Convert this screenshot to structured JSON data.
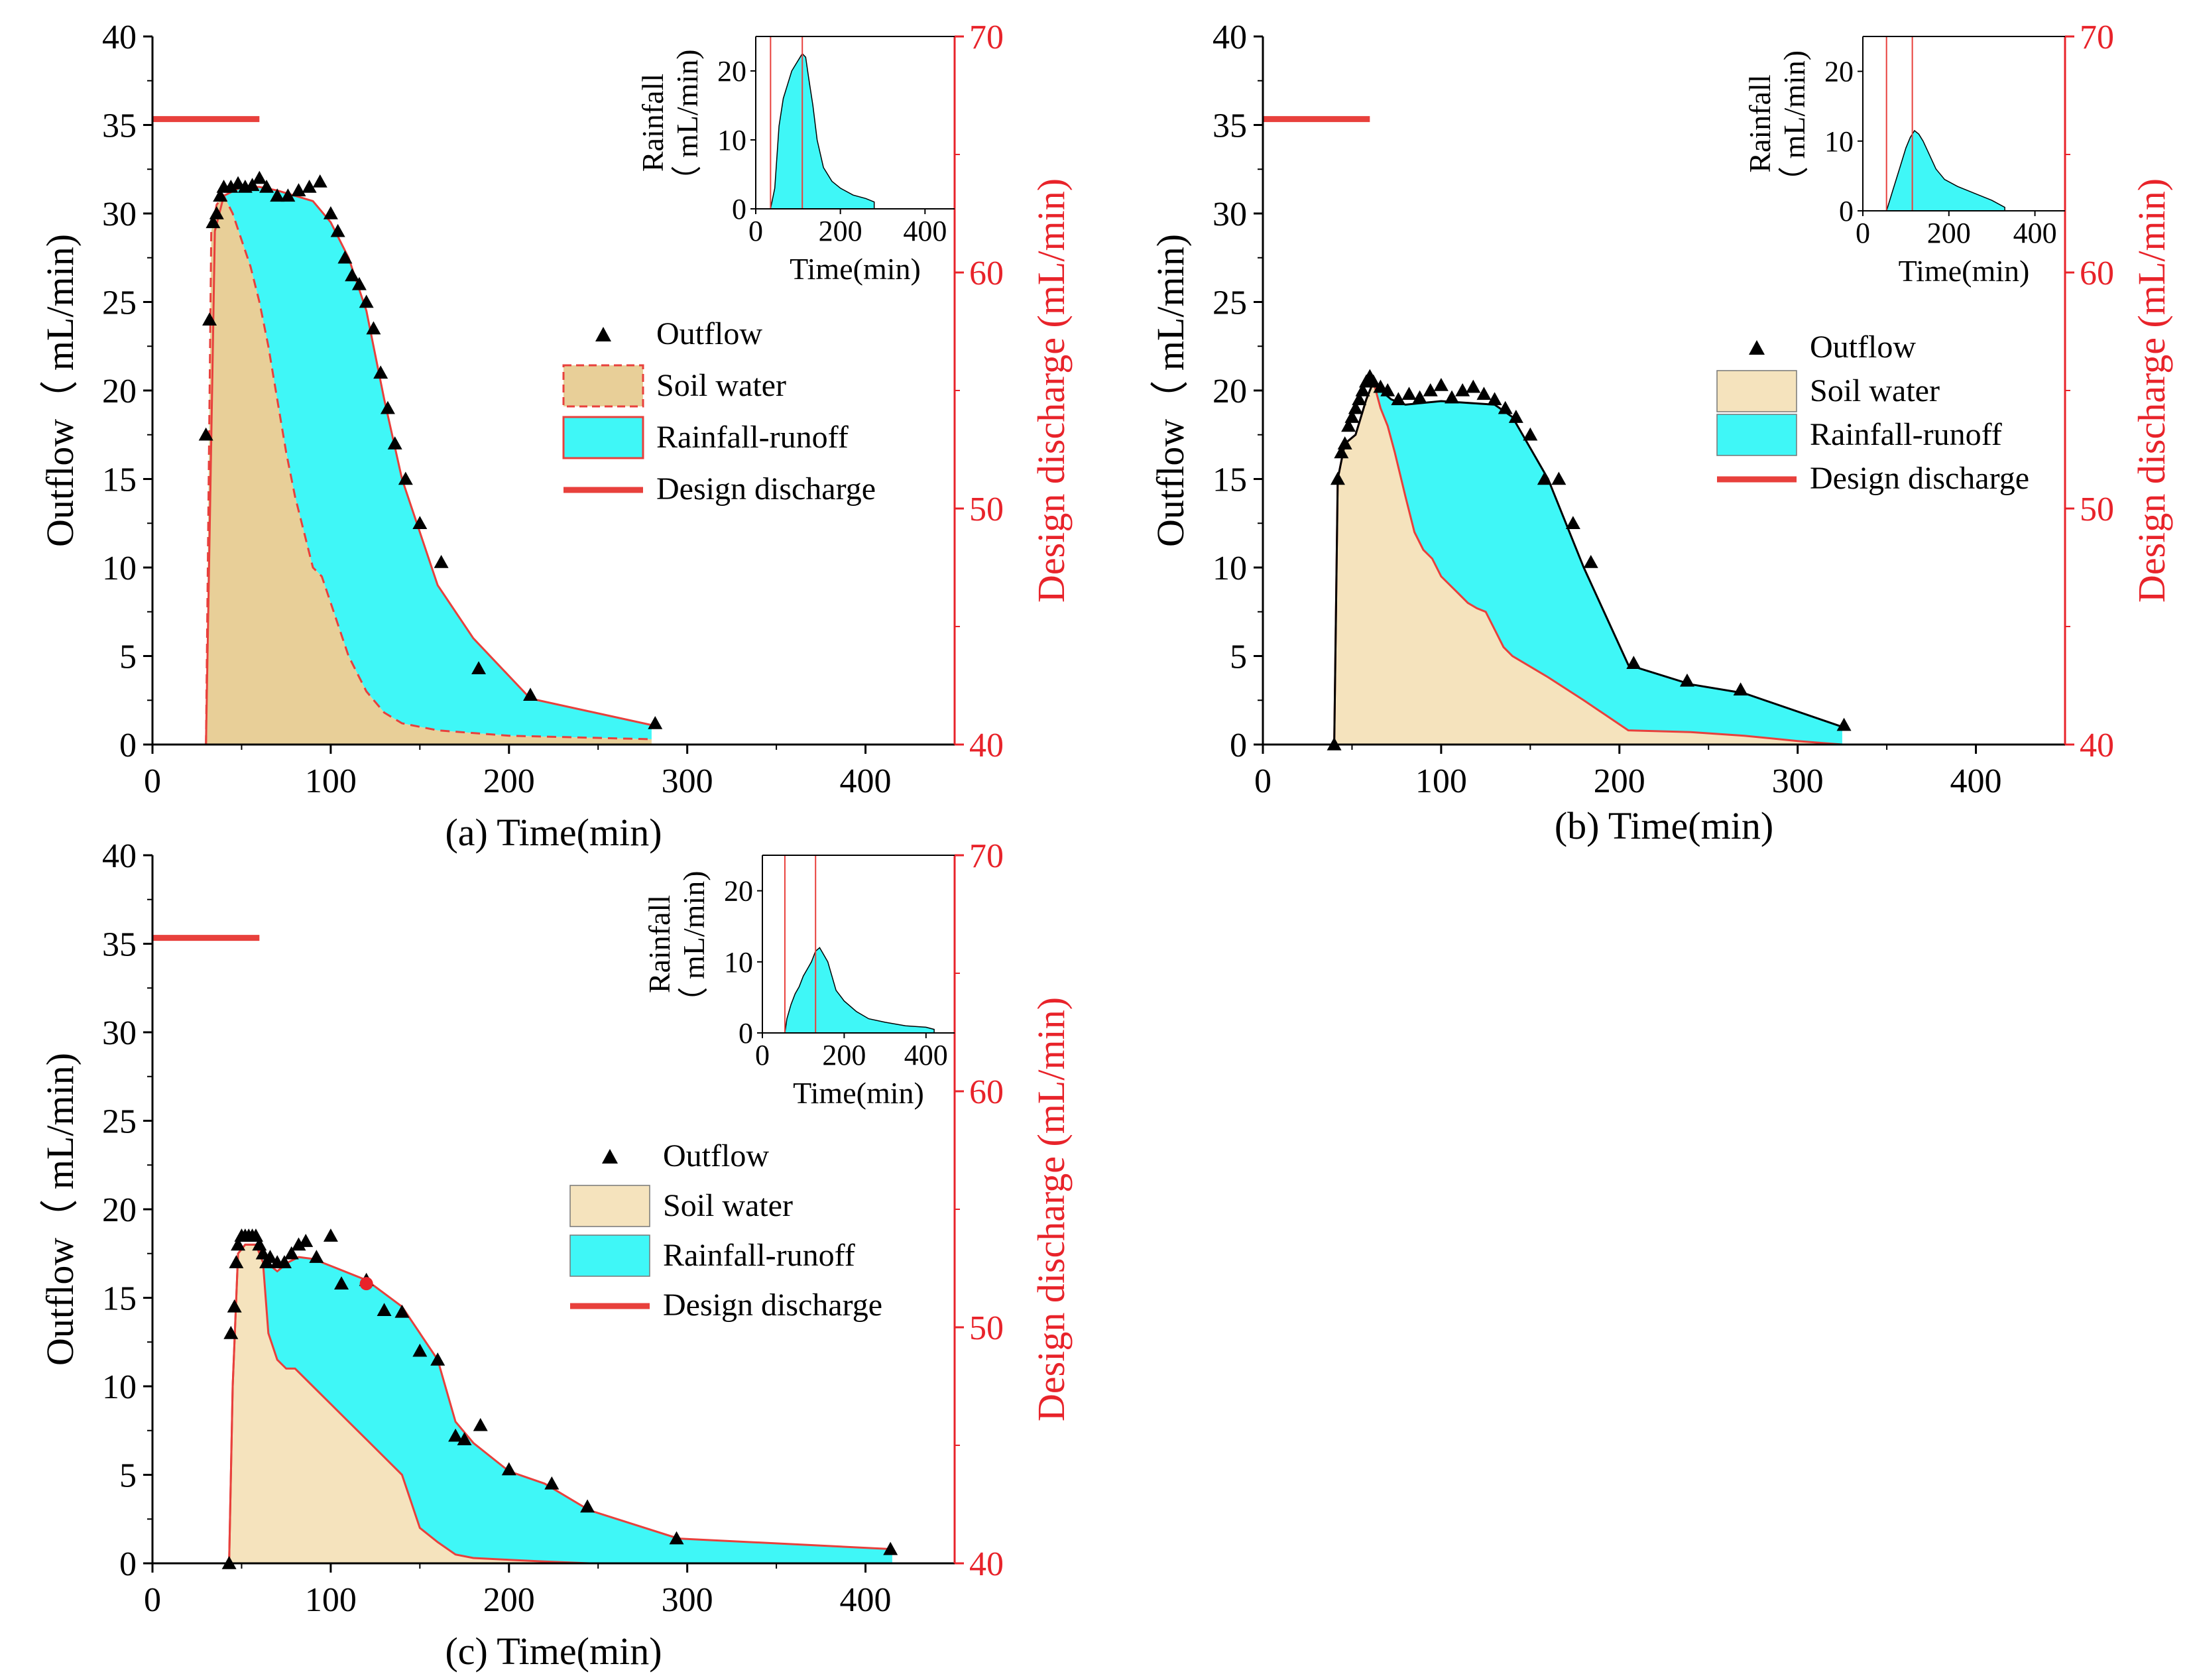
{
  "figure": {
    "panels": [
      {
        "id": "a",
        "caption": "(a)  Time(min)",
        "ylabel": "Outflow（ mL/min)",
        "y2label": "Design discharge (mL/min)",
        "x_ticks": [
          "0",
          "100",
          "200",
          "300",
          "400"
        ],
        "y_ticks": [
          "0",
          "5",
          "10",
          "15",
          "20",
          "25",
          "30",
          "35",
          "40"
        ],
        "y2_ticks": [
          "40",
          "50",
          "60",
          "70"
        ],
        "legend": {
          "outflow": "Outflow",
          "soil": "Soil water",
          "rain": "Rainfall-runoff",
          "design": "Design discharge"
        },
        "inset": {
          "ylabel_1": "Rainfall",
          "ylabel_2": "（ mL/min)",
          "xlabel": "Time(min)",
          "x_ticks": [
            "0",
            "200",
            "400"
          ],
          "y_ticks": [
            "0",
            "10",
            "20"
          ]
        }
      },
      {
        "id": "b",
        "caption": "(b)  Time(min)",
        "ylabel": "Outflow（ mL/min)",
        "y2label": "Design discharge (mL/min)",
        "x_ticks": [
          "0",
          "100",
          "200",
          "300",
          "400"
        ],
        "y_ticks": [
          "0",
          "5",
          "10",
          "15",
          "20",
          "25",
          "30",
          "35",
          "40"
        ],
        "y2_ticks": [
          "40",
          "50",
          "60",
          "70"
        ],
        "legend": {
          "outflow": "Outflow",
          "soil": "Soil water",
          "rain": "Rainfall-runoff",
          "design": "Design discharge"
        },
        "inset": {
          "ylabel_1": "Rainfall",
          "ylabel_2": "（ mL/min)",
          "xlabel": "Time(min)",
          "x_ticks": [
            "0",
            "200",
            "400"
          ],
          "y_ticks": [
            "0",
            "10",
            "20"
          ]
        }
      },
      {
        "id": "c",
        "caption": "(c)  Time(min)",
        "ylabel": "Outflow（ mL/min)",
        "y2label": "Design discharge (mL/min)",
        "x_ticks": [
          "0",
          "100",
          "200",
          "300",
          "400"
        ],
        "y_ticks": [
          "0",
          "5",
          "10",
          "15",
          "20",
          "25",
          "30",
          "35",
          "40"
        ],
        "y2_ticks": [
          "40",
          "50",
          "60",
          "70"
        ],
        "legend": {
          "outflow": "Outflow",
          "soil": "Soil water",
          "rain": "Rainfall-runoff",
          "design": "Design discharge"
        },
        "inset": {
          "ylabel_1": "Rainfall",
          "ylabel_2": "（ mL/min)",
          "xlabel": "Time(min)",
          "x_ticks": [
            "0",
            "200",
            "400"
          ],
          "y_ticks": [
            "0",
            "10",
            "20"
          ]
        }
      }
    ]
  },
  "colors": {
    "soil_fill": "#e8cf98",
    "soil_fill_light": "#f5e3bd",
    "rain_fill": "#3ff7f7",
    "design_line": "#e8403c",
    "axis_red": "#e8232a",
    "marker": "#000000"
  },
  "chart_data": [
    {
      "type": "area",
      "panel": "a",
      "xlabel": "Time(min)",
      "ylabel": "Outflow (mL/min)",
      "y2label": "Design discharge (mL/min)",
      "xlim": [
        0,
        450
      ],
      "ylim": [
        0,
        40
      ],
      "y2lim": [
        40,
        70
      ],
      "outflow": {
        "x": [
          30,
          32,
          34,
          36,
          38,
          40,
          44,
          48,
          52,
          56,
          60,
          64,
          70,
          76,
          82,
          88,
          94,
          100,
          104,
          108,
          112,
          116,
          120,
          124,
          128,
          132,
          136,
          142,
          150,
          162,
          183,
          212,
          282
        ],
        "y": [
          17.5,
          24,
          29.5,
          30,
          31,
          31.5,
          31.5,
          31.7,
          31.5,
          31.6,
          32,
          31.5,
          31,
          31,
          31.3,
          31.5,
          31.8,
          30,
          29,
          27.5,
          26.5,
          26,
          25,
          23.5,
          21,
          19,
          17,
          15,
          12.5,
          10.3,
          4.3,
          2.8,
          1.2
        ]
      },
      "total_line": {
        "x": [
          30,
          35,
          40,
          50,
          60,
          70,
          80,
          90,
          100,
          110,
          120,
          125,
          130,
          140,
          160,
          180,
          212,
          280
        ],
        "y": [
          0,
          29,
          31,
          31.5,
          31.5,
          31.3,
          31,
          30.7,
          29.5,
          27.5,
          24.5,
          22,
          19.5,
          15,
          9,
          6,
          2.6,
          1.1
        ]
      },
      "soil_water": {
        "x": [
          30,
          33,
          36,
          40,
          45,
          50,
          55,
          60,
          65,
          70,
          75,
          80,
          85,
          90,
          95,
          100,
          105,
          110,
          115,
          120,
          130,
          140,
          160,
          200,
          280
        ],
        "y": [
          0,
          29,
          30.5,
          31,
          30,
          28.5,
          27,
          25,
          22.5,
          19.5,
          16.5,
          14,
          12,
          10,
          9.5,
          8,
          6.5,
          5,
          4,
          3,
          1.8,
          1.2,
          0.8,
          0.5,
          0.3
        ]
      },
      "design_discharge": {
        "x": [
          0,
          60
        ],
        "y": [
          66.5,
          66.5
        ]
      },
      "inset": {
        "type": "area",
        "xlabel": "Time(min)",
        "ylabel": "Rainfall (mL/min)",
        "xlim": [
          0,
          470
        ],
        "ylim": [
          0,
          25
        ],
        "vlines": [
          35,
          110
        ],
        "x": [
          35,
          45,
          55,
          65,
          75,
          85,
          95,
          105,
          110,
          118,
          125,
          135,
          145,
          160,
          180,
          200,
          230,
          260,
          280
        ],
        "y": [
          0,
          3,
          12,
          16,
          18,
          20,
          21,
          22,
          22.5,
          22,
          19,
          15,
          10,
          6,
          4,
          3,
          2,
          1.5,
          1
        ]
      }
    },
    {
      "type": "area",
      "panel": "b",
      "xlabel": "Time(min)",
      "ylabel": "Outflow (mL/min)",
      "y2label": "Design discharge (mL/min)",
      "xlim": [
        0,
        450
      ],
      "ylim": [
        0,
        40
      ],
      "y2lim": [
        40,
        70
      ],
      "outflow": {
        "x": [
          40,
          42,
          44,
          46,
          48,
          50,
          52,
          54,
          56,
          58,
          60,
          62,
          66,
          70,
          76,
          82,
          88,
          94,
          100,
          106,
          112,
          118,
          124,
          130,
          136,
          142,
          150,
          158,
          166,
          174,
          184,
          208,
          238,
          268,
          326
        ],
        "y": [
          0,
          15,
          16.5,
          17,
          18,
          18.5,
          19,
          19.5,
          20,
          20.5,
          20.8,
          20.5,
          20.2,
          20,
          19.5,
          19.8,
          19.6,
          20,
          20.3,
          19.6,
          20,
          20.2,
          19.8,
          19.5,
          19,
          18.5,
          17.5,
          15,
          15,
          12.5,
          10.3,
          4.6,
          3.6,
          3.1,
          1.1
        ]
      },
      "total_line": {
        "x": [
          40,
          42,
          46,
          52,
          58,
          62,
          66,
          72,
          80,
          100,
          130,
          140,
          160,
          180,
          205,
          240,
          270,
          325
        ],
        "y": [
          0,
          15,
          17,
          17.5,
          19.5,
          20.5,
          20,
          19.5,
          19.2,
          19.4,
          19.2,
          18.5,
          15,
          10,
          4.5,
          3.4,
          2.9,
          1
        ]
      },
      "soil_water": {
        "x": [
          40,
          42,
          46,
          52,
          58,
          62,
          66,
          70,
          74,
          80,
          85,
          90,
          95,
          100,
          110,
          115,
          120,
          125,
          130,
          135,
          140,
          160,
          180,
          205,
          240,
          270,
          300,
          325
        ],
        "y": [
          0,
          15,
          17,
          17.5,
          19.5,
          20.5,
          19,
          18,
          16.5,
          14,
          12,
          11,
          10.5,
          9.5,
          8.5,
          8,
          7.7,
          7.5,
          6.5,
          5.5,
          5,
          3.8,
          2.5,
          0.8,
          0.7,
          0.5,
          0.2,
          0
        ]
      },
      "design_discharge": {
        "x": [
          0,
          60
        ],
        "y": [
          66.5,
          66.5
        ]
      },
      "inset": {
        "type": "area",
        "xlabel": "Time(min)",
        "ylabel": "Rainfall (mL/min)",
        "xlim": [
          0,
          470
        ],
        "ylim": [
          0,
          25
        ],
        "vlines": [
          55,
          115
        ],
        "x": [
          55,
          70,
          85,
          100,
          110,
          120,
          130,
          140,
          155,
          170,
          190,
          220,
          260,
          300,
          330
        ],
        "y": [
          0,
          3,
          6,
          9,
          10.5,
          11.5,
          11,
          10,
          8,
          6,
          4.5,
          3.5,
          2.5,
          1.5,
          0.5
        ]
      }
    },
    {
      "type": "area",
      "panel": "c",
      "xlabel": "Time(min)",
      "ylabel": "Outflow (mL/min)",
      "y2label": "Design discharge (mL/min)",
      "xlim": [
        0,
        450
      ],
      "ylim": [
        0,
        40
      ],
      "y2lim": [
        40,
        70
      ],
      "outflow": {
        "x": [
          43,
          44,
          46,
          47,
          48,
          50,
          52,
          54,
          56,
          58,
          60,
          62,
          64,
          66,
          70,
          74,
          78,
          82,
          86,
          92,
          100,
          106,
          120,
          130,
          140,
          150,
          160,
          170,
          175,
          184,
          200,
          224,
          244,
          294,
          414
        ],
        "y": [
          0,
          13,
          14.5,
          17,
          18,
          18.5,
          18.5,
          18.5,
          18.5,
          18.5,
          18,
          17.5,
          17,
          17.3,
          17,
          17,
          17.5,
          18,
          18.2,
          17.3,
          18.5,
          15.8,
          16,
          14.3,
          14.2,
          12,
          11.5,
          7.2,
          7,
          7.8,
          5.3,
          4.5,
          3.2,
          1.4,
          0.8
        ]
      },
      "total_line": {
        "x": [
          43,
          45,
          48,
          52,
          58,
          64,
          70,
          76,
          82,
          90,
          100,
          120,
          140,
          160,
          170,
          180,
          200,
          220,
          245,
          295,
          415
        ],
        "y": [
          0,
          10,
          17.5,
          18,
          18,
          17,
          16.5,
          17,
          17.3,
          17.2,
          16.8,
          16,
          14.5,
          11.5,
          8,
          6.8,
          5.2,
          4.5,
          3,
          1.4,
          0.8
        ]
      },
      "soil_water": {
        "x": [
          43,
          45,
          48,
          52,
          58,
          62,
          65,
          70,
          75,
          80,
          90,
          100,
          110,
          120,
          130,
          140,
          150,
          160,
          170,
          180,
          200,
          220,
          245,
          300
        ],
        "y": [
          0,
          10,
          17.5,
          18,
          18,
          17,
          13,
          11.5,
          11,
          11,
          10,
          9,
          8,
          7,
          6,
          5,
          2,
          1.2,
          0.5,
          0.3,
          0.2,
          0.1,
          0,
          0
        ]
      },
      "design_discharge": {
        "x": [
          0,
          60
        ],
        "y": [
          66.5,
          66.5
        ]
      },
      "highlight_point": {
        "x": 120,
        "y": 15.8
      },
      "inset": {
        "type": "area",
        "xlabel": "Time(min)",
        "ylabel": "Rainfall (mL/min)",
        "xlim": [
          0,
          470
        ],
        "ylim": [
          0,
          25
        ],
        "vlines": [
          55,
          130
        ],
        "x": [
          55,
          60,
          70,
          80,
          90,
          100,
          110,
          120,
          130,
          140,
          150,
          160,
          170,
          180,
          200,
          230,
          260,
          300,
          350,
          400,
          420
        ],
        "y": [
          0,
          2,
          4,
          5.5,
          6.5,
          8,
          9,
          10,
          11.5,
          12,
          11,
          10,
          8,
          6,
          4.5,
          3,
          2,
          1.5,
          1,
          0.8,
          0.5
        ]
      }
    }
  ]
}
